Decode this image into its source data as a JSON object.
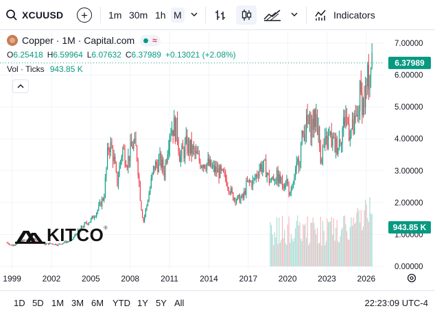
{
  "toolbar": {
    "symbol": "XCUUSD",
    "add_label": "+",
    "timeframes": [
      "1m",
      "30m",
      "1h",
      "M"
    ],
    "active_timeframe": "M",
    "indicators_label": "Indicators"
  },
  "legend": {
    "title": "Copper · 1M · Capital.com",
    "o_label": "O",
    "o": "6.25418",
    "h_label": "H",
    "h": "6.59964",
    "l_label": "L",
    "l": "6.07632",
    "c_label": "C",
    "c": "6.37989",
    "change": "+0.13021 (+2.08%)",
    "vol_label": "Vol · Ticks",
    "vol": "943.85 K"
  },
  "price_axis": {
    "last_price_label": "6.37989",
    "last_volume_label": "943.85 K"
  },
  "watermark": {
    "word": "KITCO",
    "reg": "®"
  },
  "bottom": {
    "ranges": [
      "1D",
      "5D",
      "1M",
      "3M",
      "6M",
      "YTD",
      "1Y",
      "5Y",
      "All"
    ],
    "time": "22:23:09 UTC-4"
  },
  "colors": {
    "up": "#089981",
    "down": "#f23645",
    "grid": "#f0f3fa",
    "last_price_line": "#089981",
    "volume_up": "#a6dbd3",
    "volume_down": "#f7b3b8"
  },
  "chart_data": {
    "type": "candlestick",
    "title": "Copper · 1M · Capital.com",
    "x_tick_labels": [
      "1999",
      "2002",
      "2005",
      "2008",
      "2011",
      "2014",
      "2017",
      "2020",
      "2023",
      "2026"
    ],
    "y_tick_labels": [
      "7.00000",
      "6.00000",
      "5.00000",
      "4.00000",
      "3.00000",
      "2.00000",
      "1.00000",
      "0.00000"
    ],
    "ylim": [
      0,
      7
    ],
    "xlim": [
      1998.6,
      2027.0
    ],
    "close_series": [
      {
        "t": 1998.6,
        "v": 0.75
      },
      {
        "t": 1999.0,
        "v": 0.65
      },
      {
        "t": 1999.6,
        "v": 0.78
      },
      {
        "t": 2000.0,
        "v": 0.82
      },
      {
        "t": 2000.5,
        "v": 0.86
      },
      {
        "t": 2001.0,
        "v": 0.78
      },
      {
        "t": 2001.5,
        "v": 0.7
      },
      {
        "t": 2002.0,
        "v": 0.72
      },
      {
        "t": 2002.5,
        "v": 0.68
      },
      {
        "t": 2003.0,
        "v": 0.76
      },
      {
        "t": 2003.5,
        "v": 0.8
      },
      {
        "t": 2004.0,
        "v": 1.1
      },
      {
        "t": 2004.5,
        "v": 1.3
      },
      {
        "t": 2005.0,
        "v": 1.45
      },
      {
        "t": 2005.5,
        "v": 1.75
      },
      {
        "t": 2006.0,
        "v": 2.2
      },
      {
        "t": 2006.3,
        "v": 3.6
      },
      {
        "t": 2006.4,
        "v": 3.9
      },
      {
        "t": 2006.7,
        "v": 3.5
      },
      {
        "t": 2007.0,
        "v": 2.6
      },
      {
        "t": 2007.4,
        "v": 3.7
      },
      {
        "t": 2007.8,
        "v": 3.3
      },
      {
        "t": 2008.2,
        "v": 3.85
      },
      {
        "t": 2008.5,
        "v": 3.6
      },
      {
        "t": 2008.8,
        "v": 2.0
      },
      {
        "t": 2009.0,
        "v": 1.4
      },
      {
        "t": 2009.4,
        "v": 2.2
      },
      {
        "t": 2009.8,
        "v": 3.1
      },
      {
        "t": 2010.3,
        "v": 3.3
      },
      {
        "t": 2010.6,
        "v": 2.95
      },
      {
        "t": 2011.0,
        "v": 4.3
      },
      {
        "t": 2011.3,
        "v": 4.4
      },
      {
        "t": 2011.6,
        "v": 4.2
      },
      {
        "t": 2011.8,
        "v": 3.4
      },
      {
        "t": 2012.3,
        "v": 3.8
      },
      {
        "t": 2012.8,
        "v": 3.6
      },
      {
        "t": 2013.3,
        "v": 3.3
      },
      {
        "t": 2013.8,
        "v": 3.25
      },
      {
        "t": 2014.3,
        "v": 3.05
      },
      {
        "t": 2014.8,
        "v": 2.95
      },
      {
        "t": 2015.3,
        "v": 2.75
      },
      {
        "t": 2015.8,
        "v": 2.2
      },
      {
        "t": 2016.2,
        "v": 2.1
      },
      {
        "t": 2016.6,
        "v": 2.15
      },
      {
        "t": 2016.9,
        "v": 2.6
      },
      {
        "t": 2017.4,
        "v": 2.65
      },
      {
        "t": 2017.9,
        "v": 3.15
      },
      {
        "t": 2018.3,
        "v": 3.1
      },
      {
        "t": 2018.6,
        "v": 2.7
      },
      {
        "t": 2019.1,
        "v": 2.85
      },
      {
        "t": 2019.6,
        "v": 2.6
      },
      {
        "t": 2019.9,
        "v": 2.75
      },
      {
        "t": 2020.2,
        "v": 2.15
      },
      {
        "t": 2020.6,
        "v": 2.9
      },
      {
        "t": 2020.9,
        "v": 3.5
      },
      {
        "t": 2021.3,
        "v": 4.4
      },
      {
        "t": 2021.6,
        "v": 4.4
      },
      {
        "t": 2022.0,
        "v": 4.5
      },
      {
        "t": 2022.2,
        "v": 4.75
      },
      {
        "t": 2022.5,
        "v": 3.5
      },
      {
        "t": 2022.9,
        "v": 3.8
      },
      {
        "t": 2023.2,
        "v": 4.05
      },
      {
        "t": 2023.6,
        "v": 3.75
      },
      {
        "t": 2023.9,
        "v": 3.9
      },
      {
        "t": 2024.3,
        "v": 4.5
      },
      {
        "t": 2024.4,
        "v": 4.8
      },
      {
        "t": 2024.7,
        "v": 4.3
      },
      {
        "t": 2025.0,
        "v": 4.25
      },
      {
        "t": 2025.3,
        "v": 4.6
      },
      {
        "t": 2025.5,
        "v": 5.4
      },
      {
        "t": 2025.8,
        "v": 5.1
      },
      {
        "t": 2026.1,
        "v": 5.8
      },
      {
        "t": 2026.3,
        "v": 6.3
      },
      {
        "t": 2026.45,
        "v": 6.38
      }
    ],
    "volume_visible_from": 2018.6,
    "volume_max_label": "943.85 K"
  }
}
